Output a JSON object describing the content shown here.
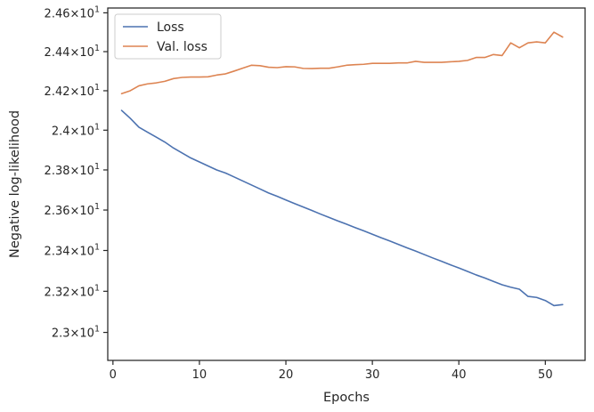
{
  "chart_data": {
    "type": "line",
    "title": "",
    "xlabel": "Epochs",
    "ylabel": "Negative log-likelihood",
    "xlim": [
      -0.6,
      54.6
    ],
    "ylim": [
      22.865,
      24.625
    ],
    "yscale": "log",
    "grid": false,
    "legend_position": "upper-left",
    "x_ticks": [
      0,
      10,
      20,
      30,
      40,
      50
    ],
    "x_tick_labels": [
      "0",
      "10",
      "20",
      "30",
      "40",
      "50"
    ],
    "y_ticks": [
      {
        "value": 23.0,
        "mantissa": "2.3",
        "base": "10",
        "exp": "1"
      },
      {
        "value": 23.2,
        "mantissa": "2.32",
        "base": "10",
        "exp": "1"
      },
      {
        "value": 23.4,
        "mantissa": "2.34",
        "base": "10",
        "exp": "1"
      },
      {
        "value": 23.6,
        "mantissa": "2.36",
        "base": "10",
        "exp": "1"
      },
      {
        "value": 23.8,
        "mantissa": "2.38",
        "base": "10",
        "exp": "1"
      },
      {
        "value": 24.0,
        "mantissa": "2.4",
        "base": "10",
        "exp": "1"
      },
      {
        "value": 24.2,
        "mantissa": "2.42",
        "base": "10",
        "exp": "1"
      },
      {
        "value": 24.4,
        "mantissa": "2.44",
        "base": "10",
        "exp": "1"
      },
      {
        "value": 24.6,
        "mantissa": "2.46",
        "base": "10",
        "exp": "1"
      }
    ],
    "x": [
      1,
      2,
      3,
      4,
      5,
      6,
      7,
      8,
      9,
      10,
      11,
      12,
      13,
      14,
      15,
      16,
      17,
      18,
      19,
      20,
      21,
      22,
      23,
      24,
      25,
      26,
      27,
      28,
      29,
      30,
      31,
      32,
      33,
      34,
      35,
      36,
      37,
      38,
      39,
      40,
      41,
      42,
      43,
      44,
      45,
      46,
      47,
      48,
      49,
      50,
      51,
      52
    ],
    "series": [
      {
        "name": "Loss",
        "color": "#4c72b0",
        "values": [
          24.1,
          24.06,
          24.015,
          23.99,
          23.965,
          23.94,
          23.91,
          23.885,
          23.86,
          23.84,
          23.82,
          23.8,
          23.785,
          23.765,
          23.745,
          23.725,
          23.705,
          23.685,
          23.668,
          23.65,
          23.632,
          23.615,
          23.598,
          23.58,
          23.563,
          23.546,
          23.53,
          23.513,
          23.497,
          23.48,
          23.463,
          23.447,
          23.43,
          23.413,
          23.397,
          23.38,
          23.363,
          23.347,
          23.33,
          23.314,
          23.297,
          23.28,
          23.265,
          23.248,
          23.232,
          23.22,
          23.21,
          23.175,
          23.17,
          23.155,
          23.13,
          23.135
        ]
      },
      {
        "name": "Val. loss",
        "color": "#dd8452",
        "values": [
          24.185,
          24.2,
          24.225,
          24.235,
          24.24,
          24.248,
          24.262,
          24.268,
          24.27,
          24.27,
          24.271,
          24.28,
          24.286,
          24.3,
          24.315,
          24.33,
          24.328,
          24.32,
          24.318,
          24.323,
          24.322,
          24.314,
          24.313,
          24.315,
          24.315,
          24.322,
          24.33,
          24.333,
          24.335,
          24.34,
          24.34,
          24.34,
          24.342,
          24.342,
          24.35,
          24.345,
          24.345,
          24.345,
          24.348,
          24.35,
          24.355,
          24.37,
          24.37,
          24.385,
          24.38,
          24.445,
          24.42,
          24.445,
          24.45,
          24.445,
          24.5,
          24.475
        ]
      }
    ]
  }
}
